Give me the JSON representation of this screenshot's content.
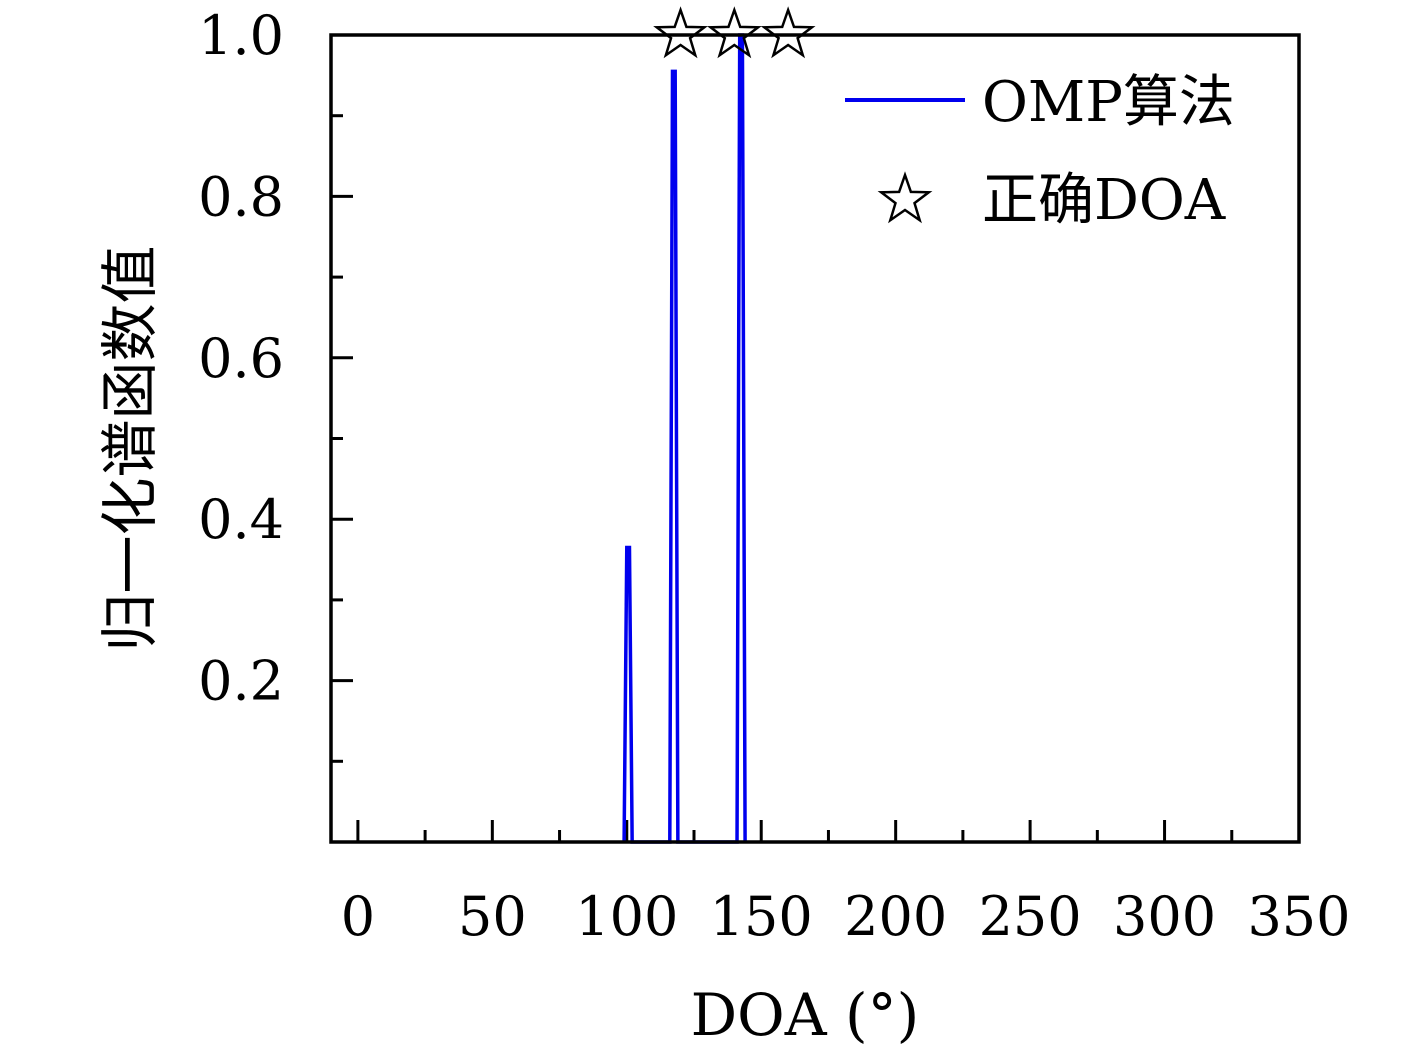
{
  "chart_data": {
    "type": "line",
    "xlabel": "DOA (°)",
    "ylabel": "归一化谱函数值",
    "xlim": [
      -10,
      350
    ],
    "ylim": [
      0,
      1.0
    ],
    "xticks": [
      0,
      50,
      100,
      150,
      200,
      250,
      300,
      350
    ],
    "xtick_labels": [
      "0",
      "50",
      "100",
      "150",
      "200",
      "250",
      "300",
      "350"
    ],
    "yticks": [
      0.2,
      0.4,
      0.6,
      0.8,
      1.0
    ],
    "ytick_labels": [
      "0.2",
      "0.4",
      "0.6",
      "0.8",
      "1.0"
    ],
    "grid": false,
    "legend_position": "top-right",
    "legend": [
      "OMP算法",
      "正确DOA"
    ],
    "series": [
      {
        "name": "OMP算法",
        "color": "#0000ee",
        "x": [
          99,
          100,
          101,
          102,
          116,
          117,
          118,
          119,
          141,
          142,
          143,
          144
        ],
        "y": [
          0,
          0.365,
          0.365,
          0,
          0,
          0.955,
          0.955,
          0,
          0,
          1.0,
          1.0,
          0
        ]
      },
      {
        "name": "正确DOA",
        "marker": "star",
        "color": "#000000",
        "x": [
          120,
          140,
          160
        ],
        "y": [
          1.0,
          1.0,
          1.0
        ]
      }
    ]
  }
}
